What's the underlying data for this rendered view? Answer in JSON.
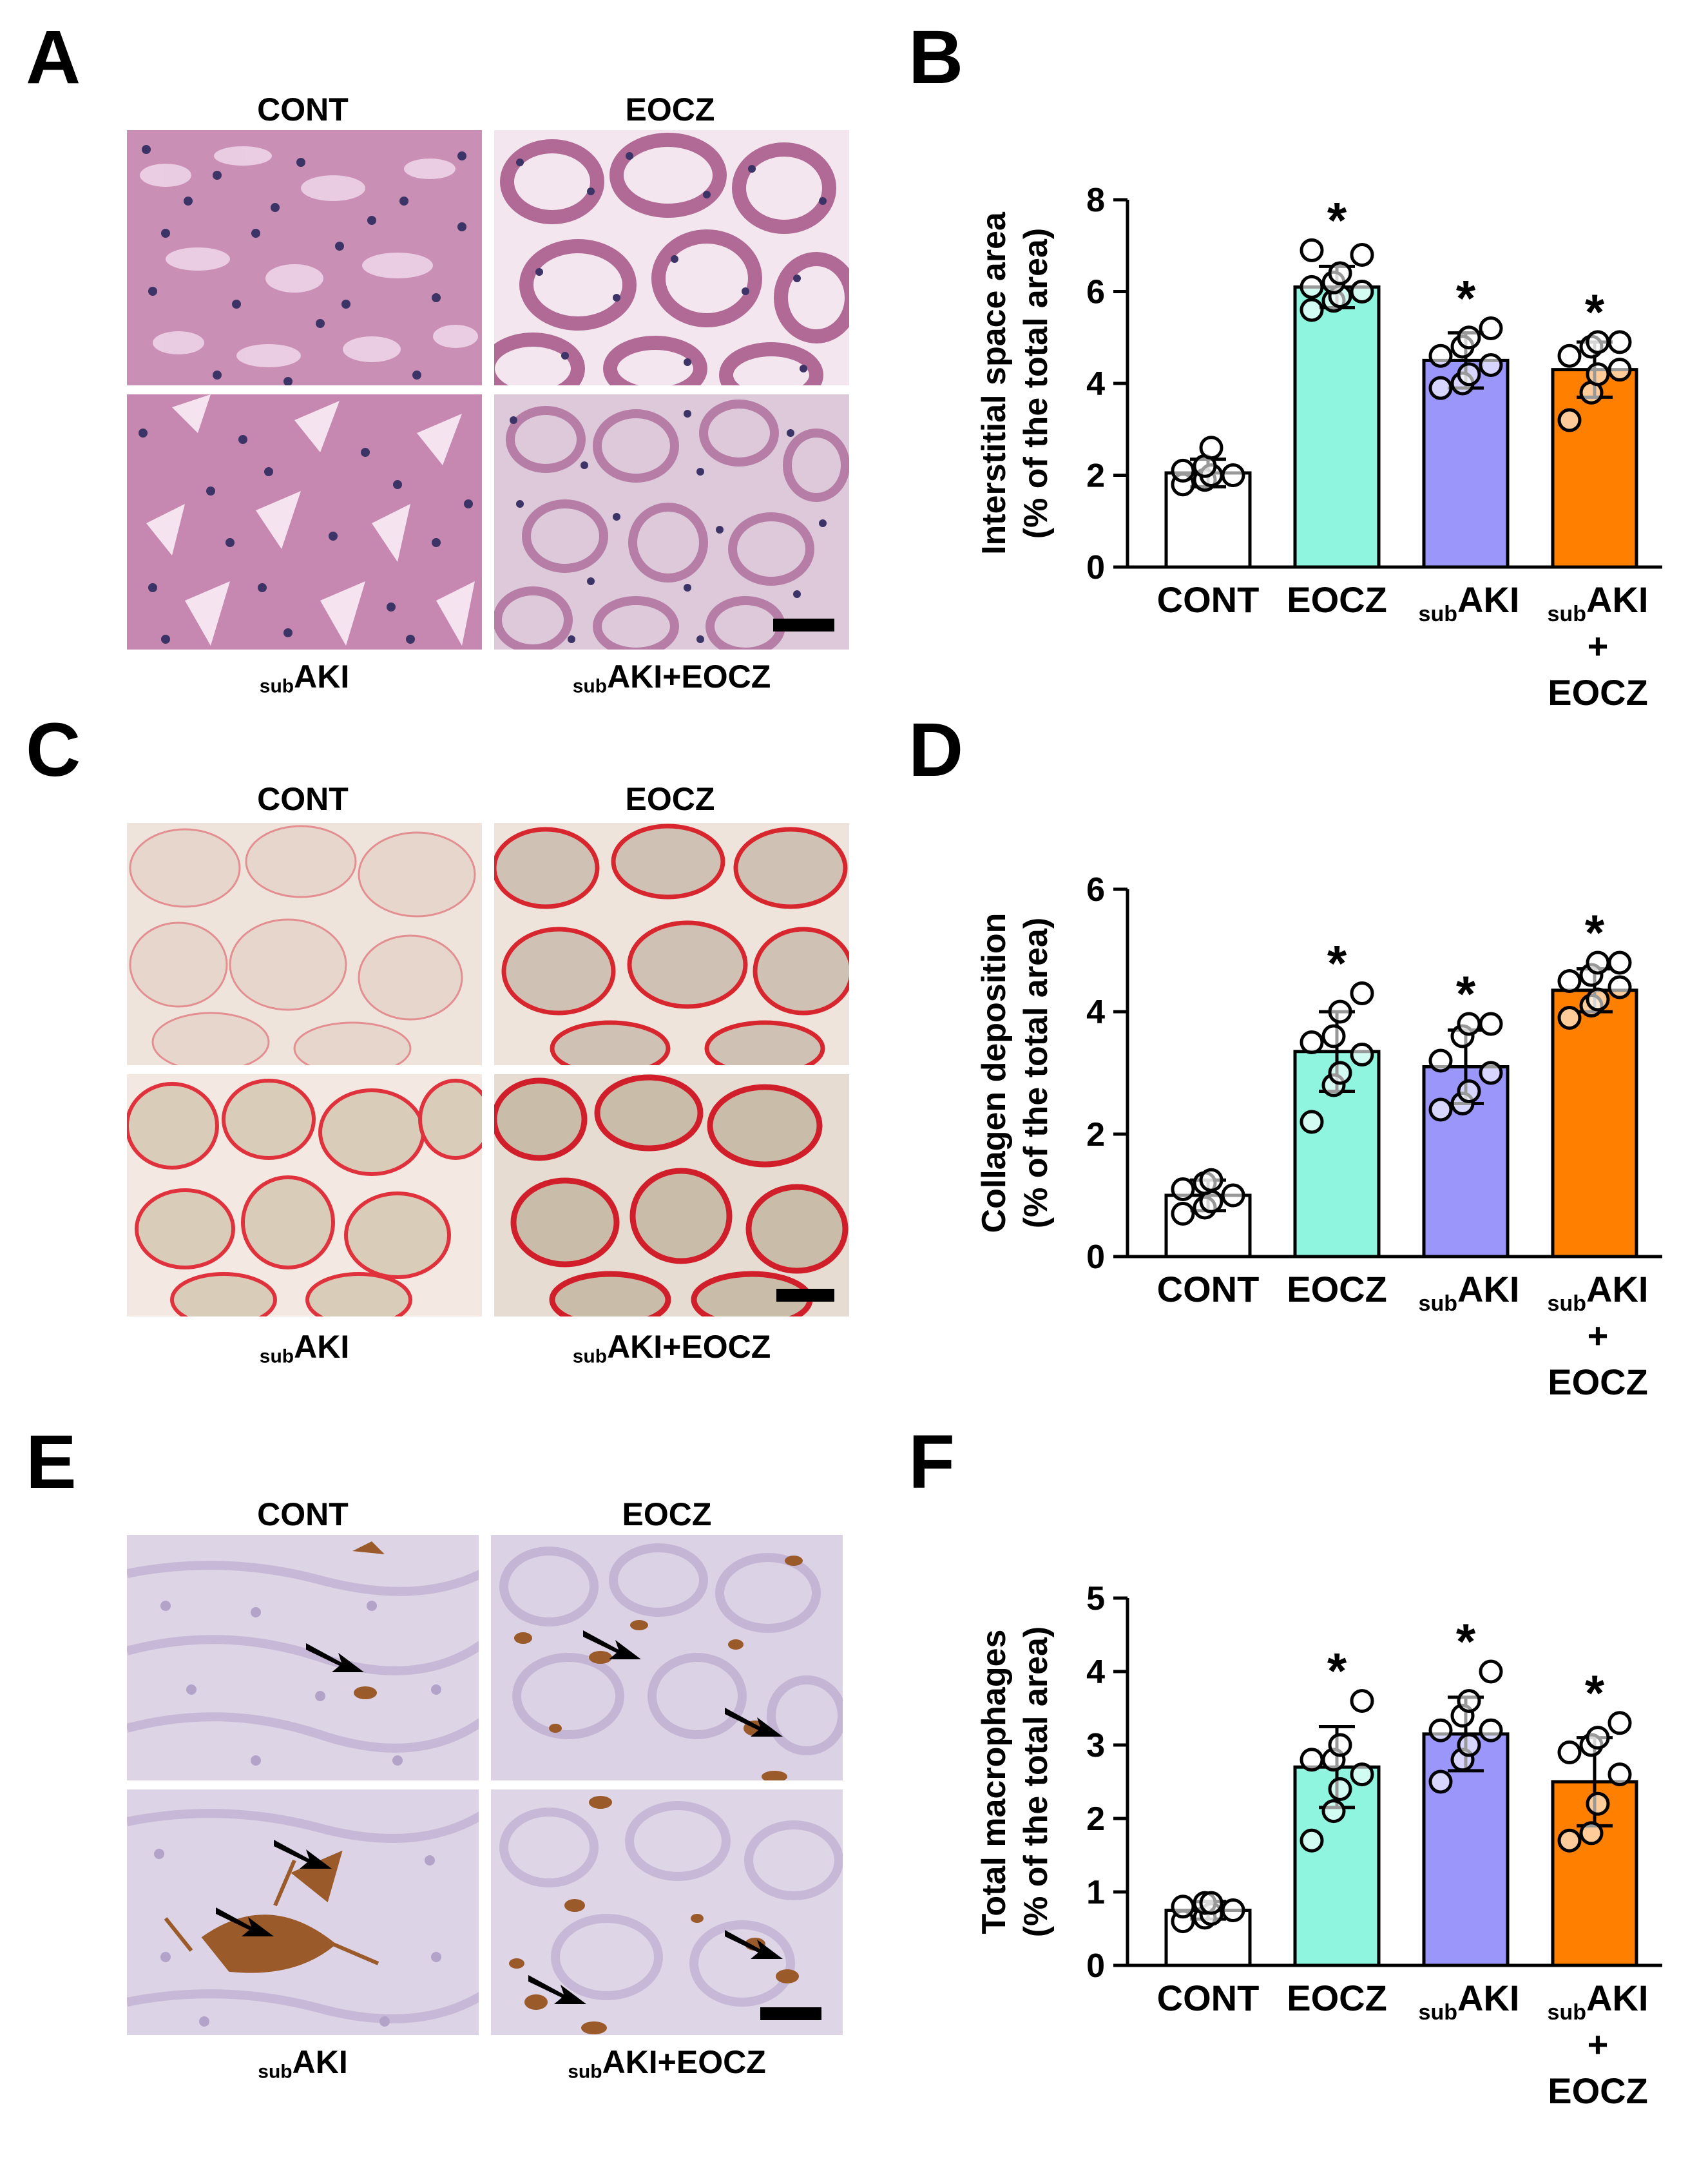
{
  "figure": {
    "panels": {
      "A": {
        "letter": "A",
        "labels": {
          "top_left": "CONT",
          "top_right": "EOCZ",
          "bottom_left_sub": "sub",
          "bottom_left": "AKI",
          "bottom_right_sub": "sub",
          "bottom_right": "AKI+EOCZ"
        }
      },
      "C": {
        "letter": "C",
        "labels": {
          "top_left": "CONT",
          "top_right": "EOCZ",
          "bottom_left_sub": "sub",
          "bottom_left": "AKI",
          "bottom_right_sub": "sub",
          "bottom_right": "AKI+EOCZ"
        }
      },
      "E": {
        "letter": "E",
        "labels": {
          "top_left": "CONT",
          "top_right": "EOCZ",
          "bottom_left_sub": "sub",
          "bottom_left": "AKI",
          "bottom_right_sub": "sub",
          "bottom_right": "AKI+EOCZ"
        }
      }
    },
    "stain_colors": {
      "he_background": "#c98fb4",
      "he_nuclei": "#3c3466",
      "picrosirius_background": "#e8ddd0",
      "picrosirius_collagen": "#d8262f",
      "ihc_background": "#d9d1e6",
      "ihc_macrophage": "#9b5a2a"
    }
  },
  "chart_data": [
    {
      "panel": "B",
      "type": "bar",
      "categories": [
        "CONT",
        "EOCZ",
        "subAKI",
        "subAKI+EOCZ"
      ],
      "values": [
        2.05,
        6.1,
        4.5,
        4.3
      ],
      "errors": [
        0.3,
        0.45,
        0.6,
        0.6
      ],
      "points": [
        [
          1.8,
          1.9,
          2.0,
          2.0,
          2.1,
          2.2,
          2.6
        ],
        [
          5.6,
          5.8,
          5.9,
          6.0,
          6.1,
          6.2,
          6.4,
          6.8,
          6.9
        ],
        [
          3.9,
          4.0,
          4.2,
          4.4,
          4.6,
          4.8,
          5.0,
          5.2
        ],
        [
          3.2,
          3.8,
          4.2,
          4.3,
          4.6,
          4.8,
          4.9,
          4.9
        ]
      ],
      "significance": [
        "",
        "*",
        "*",
        "*"
      ],
      "ylabel": "Interstitial space area",
      "ylabel2": "(% of the total area)",
      "ylim": [
        0,
        8
      ],
      "yticks": [
        0,
        2,
        4,
        6,
        8
      ],
      "letter": "B"
    },
    {
      "panel": "D",
      "type": "bar",
      "categories": [
        "CONT",
        "EOCZ",
        "subAKI",
        "subAKI+EOCZ"
      ],
      "values": [
        1.0,
        3.35,
        3.1,
        4.35
      ],
      "errors": [
        0.25,
        0.65,
        0.6,
        0.35
      ],
      "points": [
        [
          0.7,
          0.8,
          0.9,
          1.0,
          1.1,
          1.2,
          1.25
        ],
        [
          2.2,
          2.8,
          3.0,
          3.3,
          3.5,
          3.6,
          4.0,
          4.3
        ],
        [
          2.4,
          2.5,
          2.7,
          3.0,
          3.2,
          3.6,
          3.8,
          3.8
        ],
        [
          3.9,
          4.1,
          4.2,
          4.4,
          4.5,
          4.6,
          4.8,
          4.8
        ]
      ],
      "significance": [
        "",
        "*",
        "*",
        "*"
      ],
      "ylabel": "Collagen deposition",
      "ylabel2": "(% of the total area)",
      "ylim": [
        0,
        6
      ],
      "yticks": [
        0,
        2,
        4,
        6
      ],
      "letter": "D"
    },
    {
      "panel": "F",
      "type": "bar",
      "categories": [
        "CONT",
        "EOCZ",
        "subAKI",
        "subAKI+EOCZ"
      ],
      "values": [
        0.75,
        2.7,
        3.15,
        2.5
      ],
      "errors": [
        0.12,
        0.55,
        0.5,
        0.6
      ],
      "points": [
        [
          0.6,
          0.65,
          0.7,
          0.75,
          0.8,
          0.85,
          0.85
        ],
        [
          1.7,
          2.1,
          2.4,
          2.6,
          2.8,
          2.8,
          3.0,
          3.6
        ],
        [
          2.5,
          2.8,
          3.0,
          3.2,
          3.2,
          3.4,
          3.6,
          4.0
        ],
        [
          1.7,
          1.8,
          2.2,
          2.6,
          2.9,
          3.0,
          3.1,
          3.3
        ]
      ],
      "significance": [
        "",
        "*",
        "*",
        "*"
      ],
      "ylabel": "Total macrophages",
      "ylabel2": "(% of the total area)",
      "ylim": [
        0,
        5
      ],
      "yticks": [
        0,
        1,
        2,
        3,
        4,
        5
      ],
      "letter": "F"
    }
  ],
  "bar_colors": [
    "#ffffff",
    "#8ff5de",
    "#9b97fa",
    "#ff8000"
  ],
  "x_labels": {
    "cont": "CONT",
    "eocz": "EOCZ",
    "sub": "sub",
    "aki": "AKI",
    "plus": "+"
  }
}
